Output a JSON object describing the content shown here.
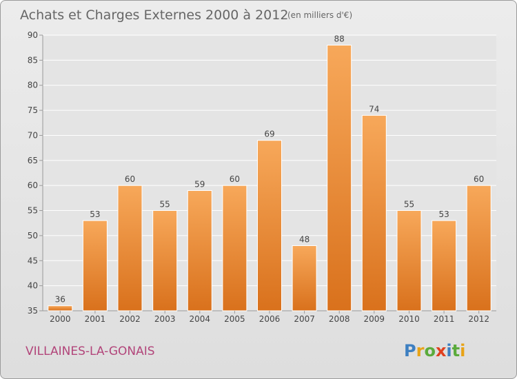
{
  "chart_data": {
    "type": "bar",
    "title": "Achats et Charges Externes 2000 à 2012",
    "subtitle": "(en milliers d'€)",
    "categories": [
      "2000",
      "2001",
      "2002",
      "2003",
      "2004",
      "2005",
      "2006",
      "2007",
      "2008",
      "2009",
      "2010",
      "2011",
      "2012"
    ],
    "values": [
      36,
      53,
      60,
      55,
      59,
      60,
      69,
      48,
      88,
      74,
      55,
      53,
      60
    ],
    "ylim": [
      35,
      90
    ],
    "yticks": [
      35,
      40,
      45,
      50,
      55,
      60,
      65,
      70,
      75,
      80,
      85,
      90
    ],
    "grid": true,
    "bar_color": "#f0953f",
    "data_labels": true
  },
  "footer": {
    "commune": "VILLAINES-LA-GONAIS",
    "brand_letters": [
      {
        "ch": "P",
        "color": "#3d7fc1"
      },
      {
        "ch": "r",
        "color": "#e8a317"
      },
      {
        "ch": "o",
        "color": "#5bab3c"
      },
      {
        "ch": "x",
        "color": "#e0401f"
      },
      {
        "ch": "i",
        "color": "#3d7fc1"
      },
      {
        "ch": "t",
        "color": "#5bab3c"
      },
      {
        "ch": "i",
        "color": "#e8a317"
      }
    ]
  }
}
